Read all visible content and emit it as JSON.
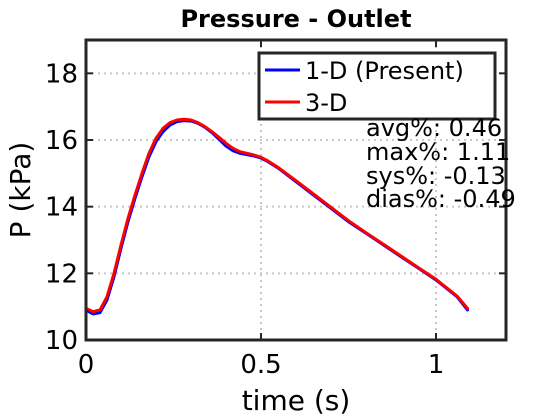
{
  "chart_data": {
    "type": "line",
    "title": "Pressure - Outlet",
    "xlabel": "time (s)",
    "ylabel": "P (kPa)",
    "xlim": [
      0,
      1.2
    ],
    "ylim": [
      10,
      19
    ],
    "xticks": [
      0,
      0.5,
      1
    ],
    "xtick_labels": [
      "0",
      "0.5",
      "1"
    ],
    "yticks": [
      10,
      12,
      14,
      16,
      18
    ],
    "ytick_labels": [
      "10",
      "12",
      "14",
      "16",
      "18"
    ],
    "grid": true,
    "legend_position": "top-right",
    "colors": {
      "series_1": "#0000ff",
      "series_2": "#ff0000"
    },
    "series": [
      {
        "name": "1-D (Present)",
        "x": [
          0,
          0.02,
          0.04,
          0.06,
          0.08,
          0.1,
          0.12,
          0.14,
          0.16,
          0.18,
          0.2,
          0.22,
          0.24,
          0.26,
          0.28,
          0.3,
          0.32,
          0.34,
          0.36,
          0.38,
          0.4,
          0.42,
          0.44,
          0.46,
          0.48,
          0.5,
          0.52,
          0.55,
          0.6,
          0.65,
          0.7,
          0.75,
          0.8,
          0.85,
          0.9,
          0.95,
          1.0,
          1.03,
          1.06,
          1.09
        ],
        "y": [
          10.9,
          10.78,
          10.82,
          11.2,
          11.9,
          12.75,
          13.55,
          14.25,
          14.9,
          15.5,
          15.95,
          16.25,
          16.45,
          16.55,
          16.58,
          16.57,
          16.5,
          16.38,
          16.22,
          16.02,
          15.82,
          15.68,
          15.6,
          15.56,
          15.52,
          15.46,
          15.35,
          15.15,
          14.75,
          14.35,
          13.95,
          13.55,
          13.2,
          12.85,
          12.5,
          12.15,
          11.8,
          11.55,
          11.3,
          10.9
        ]
      },
      {
        "name": "3-D",
        "x": [
          0,
          0.02,
          0.04,
          0.06,
          0.08,
          0.1,
          0.12,
          0.14,
          0.16,
          0.18,
          0.2,
          0.22,
          0.24,
          0.26,
          0.28,
          0.3,
          0.32,
          0.34,
          0.36,
          0.38,
          0.4,
          0.42,
          0.44,
          0.46,
          0.48,
          0.5,
          0.52,
          0.55,
          0.6,
          0.65,
          0.7,
          0.75,
          0.8,
          0.85,
          0.9,
          0.95,
          1.0,
          1.03,
          1.06,
          1.09
        ],
        "y": [
          10.95,
          10.85,
          10.9,
          11.3,
          12.0,
          12.85,
          13.65,
          14.35,
          15.0,
          15.6,
          16.05,
          16.35,
          16.52,
          16.6,
          16.62,
          16.6,
          16.52,
          16.4,
          16.25,
          16.08,
          15.9,
          15.75,
          15.65,
          15.6,
          15.55,
          15.48,
          15.37,
          15.17,
          14.78,
          14.38,
          13.98,
          13.58,
          13.22,
          12.87,
          12.52,
          12.17,
          11.82,
          11.57,
          11.32,
          10.95
        ]
      }
    ],
    "annotations": [
      "avg%: 0.46",
      "max%: 1.11",
      "sys%: -0.13",
      "dias%: -0.49"
    ]
  }
}
